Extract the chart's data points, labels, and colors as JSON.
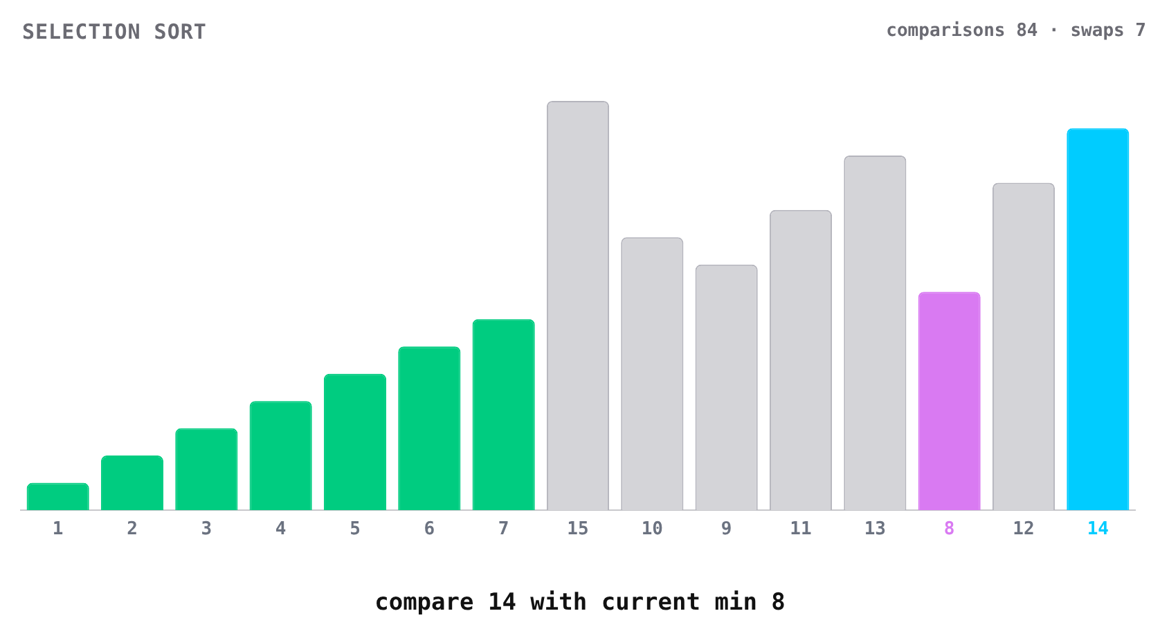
{
  "chart_data": {
    "type": "bar",
    "title": "SELECTION SORT",
    "subtitle": "comparisons 84 · swaps 7",
    "annotations": [
      "compare 14 with current min 8"
    ],
    "categories": [
      null,
      null,
      null,
      null,
      null,
      null,
      null,
      null,
      null,
      null,
      null,
      null,
      null,
      null,
      null
    ],
    "values": [
      1,
      2,
      3,
      4,
      5,
      6,
      7,
      15,
      10,
      9,
      11,
      13,
      8,
      12,
      14
    ],
    "colors": [
      "#00cc80",
      "#00cc80",
      "#00cc80",
      "#00cc80",
      "#00cc80",
      "#00cc80",
      "#00cc80",
      "#d4d4d8",
      "#d4d4d8",
      "#d4d4d8",
      "#d4d4d8",
      "#d4d4d8",
      "#d97af2",
      "#d4d4d8",
      "#00ccff"
    ],
    "data_labels": true,
    "grid": false,
    "legend": false
  }
}
